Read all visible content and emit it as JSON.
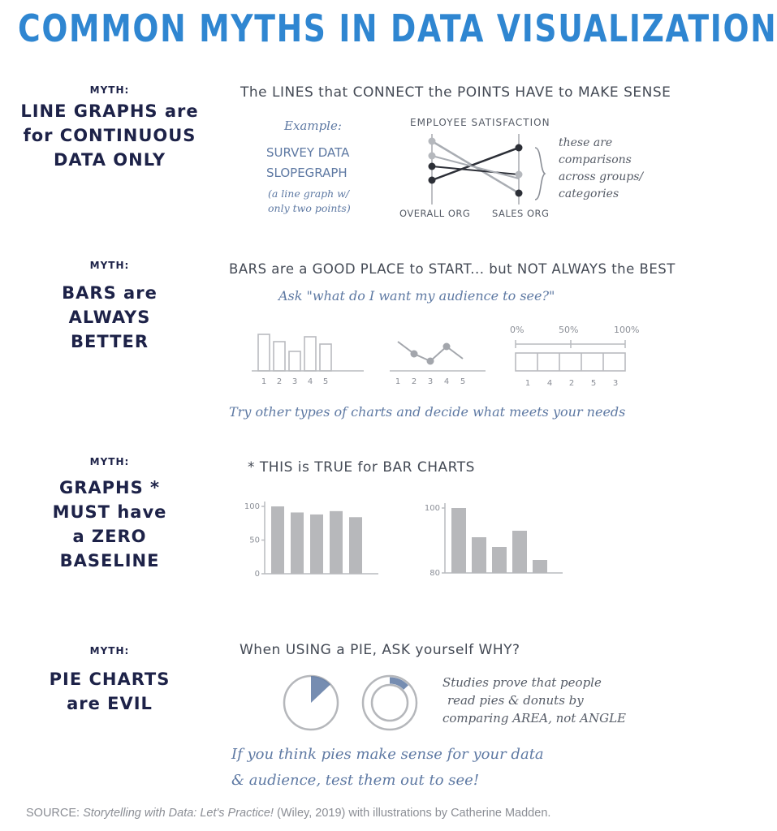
{
  "title": "COMMON MYTHS IN DATA VISUALIZATION",
  "myths": [
    {
      "label": "MYTH:",
      "lines": [
        "LINE GRAPHS are",
        "for CONTINUOUS",
        "DATA ONLY"
      ],
      "heading": "The LINES that CONNECT the POINTS HAVE to MAKE SENSE",
      "example_label": "Example:",
      "example_title_lines": [
        "SURVEY DATA",
        "SLOPEGRAPH"
      ],
      "example_note_lines": [
        "(a line graph w/",
        "only two points)"
      ],
      "chart_title": "EMPLOYEE SATISFACTION",
      "axis_left": "OVERALL ORG",
      "axis_right": "SALES ORG",
      "note_lines": [
        "these are",
        "comparisons",
        "across groups/",
        "categories"
      ]
    },
    {
      "label": "MYTH:",
      "lines": [
        "BARS are",
        "ALWAYS",
        "BETTER"
      ],
      "heading": "BARS are a GOOD PLACE to START... but NOT ALWAYS the BEST",
      "subheading": "Ask \"what do I want my audience to see?\"",
      "bar_ticks": [
        "1",
        "2",
        "3",
        "4",
        "5"
      ],
      "line_ticks": [
        "1",
        "2",
        "3",
        "4",
        "5"
      ],
      "scale_labels": [
        "0%",
        "50%",
        "100%"
      ],
      "scale_ticks": [
        "1",
        "4",
        "2",
        "5",
        "3"
      ],
      "footer": "Try other types of charts and decide what meets your needs"
    },
    {
      "label": "MYTH:",
      "lines": [
        "GRAPHS *",
        "MUST have",
        "a ZERO",
        "BASELINE"
      ],
      "heading": "* THIS is TRUE for BAR CHARTS",
      "left_axis": [
        "100",
        "50",
        "0"
      ],
      "right_axis": [
        "100",
        "80"
      ]
    },
    {
      "label": "MYTH:",
      "lines": [
        "PIE CHARTS",
        "are EVIL"
      ],
      "heading": "When USING a PIE, ASK yourself WHY?",
      "note_lines": [
        "Studies prove that people",
        "read pies & donuts by",
        "comparing AREA, not ANGLE"
      ],
      "footer_lines": [
        "If you think pies make sense for your data",
        "& audience, test them out to see!"
      ]
    }
  ],
  "source": {
    "prefix": "SOURCE: ",
    "book": "Storytelling with Data: Let's Practice!",
    "suffix": " (Wiley, 2019) with illustrations by Catherine Madden."
  },
  "chart_data": [
    {
      "type": "line",
      "title": "EMPLOYEE SATISFACTION",
      "categories": [
        "OVERALL ORG",
        "SALES ORG"
      ],
      "series": [
        {
          "values": [
            "high",
            "low"
          ]
        },
        {
          "values": [
            "low",
            "high"
          ]
        },
        {
          "values": [
            "mid-high",
            "mid"
          ]
        },
        {
          "values": [
            "mid-low",
            "mid-low"
          ]
        }
      ]
    },
    {
      "type": "bar",
      "categories": [
        "1",
        "2",
        "3",
        "4",
        "5"
      ],
      "values": [
        0.75,
        0.6,
        0.4,
        0.7,
        0.55
      ]
    },
    {
      "type": "line",
      "categories": [
        "1",
        "2",
        "3",
        "4",
        "5"
      ],
      "values": [
        0.6,
        0.35,
        0.2,
        0.5,
        0.25
      ]
    },
    {
      "type": "bar",
      "categories": [
        "1",
        "2",
        "3",
        "4",
        "5"
      ],
      "values": [
        100,
        91,
        88,
        93,
        84
      ],
      "ylim": [
        0,
        100
      ],
      "yticks": [
        "0",
        "50",
        "100"
      ]
    },
    {
      "type": "bar",
      "categories": [
        "1",
        "2",
        "3",
        "4",
        "5"
      ],
      "values": [
        100,
        91,
        88,
        93,
        84
      ],
      "ylim": [
        80,
        100
      ],
      "yticks": [
        "80",
        "100"
      ]
    },
    {
      "type": "pie",
      "values": [
        0.13,
        0.87
      ]
    }
  ],
  "colors": {
    "title": "#2f86d1",
    "myth": "#1d2248",
    "accent": "#5e79a3",
    "gray": "#b9bbbf",
    "bar": "#b7b8bb"
  }
}
